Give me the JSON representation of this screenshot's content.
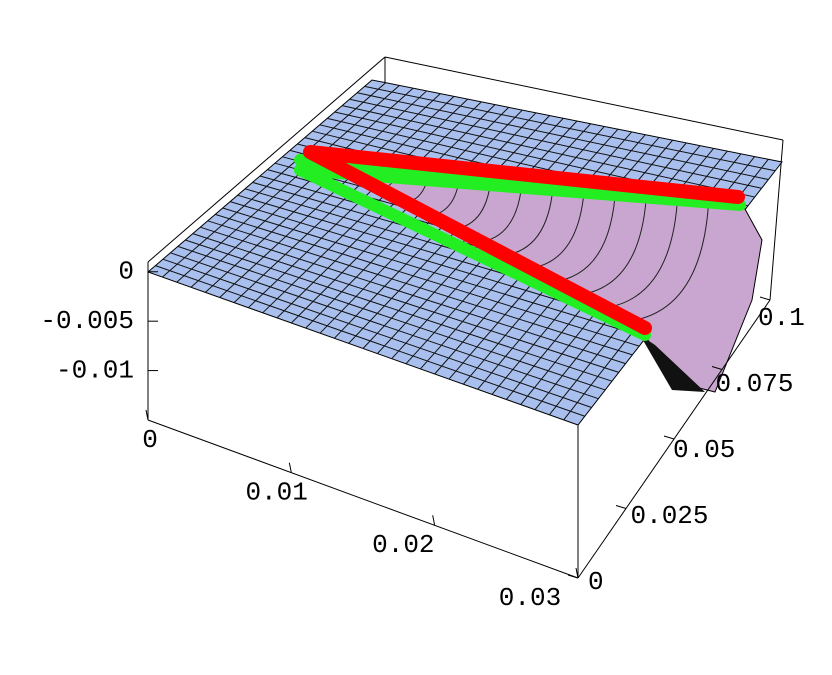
{
  "chart_data": {
    "type": "surface3d",
    "xlim": [
      0,
      0.03
    ],
    "xticks": [
      0,
      0.01,
      0.02,
      0.03
    ],
    "ylim": [
      0,
      0.1
    ],
    "yticks": [
      0,
      0.025,
      0.05,
      0.075,
      0.1
    ],
    "zlim": [
      -0.015,
      0.002
    ],
    "zticks": [
      0,
      -0.005,
      -0.01
    ],
    "surface_color": "#a9c0ee",
    "trough_color": "#c9a6cf",
    "line_colors": [
      "#ff0000",
      "#22ee22"
    ]
  }
}
